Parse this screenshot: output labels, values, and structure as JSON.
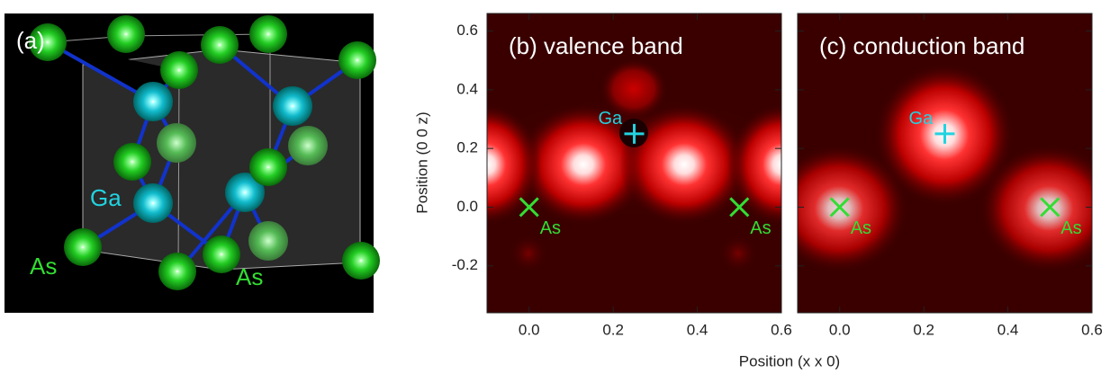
{
  "panel_a": {
    "label": "(a)",
    "atom_labels": [
      "Ga",
      "As",
      "As"
    ]
  },
  "chart_data": [
    {
      "type": "contour",
      "title": "(b) valence band",
      "xlim": [
        -0.1,
        0.6
      ],
      "ylim": [
        -0.36,
        0.66
      ],
      "xticks": [
        {
          "value": 0,
          "label": "0.0"
        },
        0.2,
        0.4,
        0.6
      ],
      "yticks": [
        -0.2,
        {
          "value": 0,
          "label": "0.0"
        },
        0.2,
        0.4,
        0.6
      ],
      "xlabel": "Position (x x 0)",
      "ylabel": "Position (0 0 z)",
      "atoms": {
        "names": [
          "Ga",
          "As",
          "As"
        ],
        "x": [
          0.25,
          0,
          0.5
        ],
        "y": [
          0.25,
          0,
          0
        ],
        "colors": [
          "#22d3e0",
          "#33dd33",
          "#33dd33"
        ]
      }
    },
    {
      "type": "contour",
      "title": "(c) conduction band",
      "xlim": [
        -0.1,
        0.6
      ],
      "ylim": [
        -0.36,
        0.66
      ],
      "xticks": [
        {
          "value": 0,
          "label": "0.0"
        },
        0.2,
        0.4,
        0.6
      ],
      "atoms": {
        "names": [
          "Ga",
          "As",
          "As"
        ],
        "x": [
          0.25,
          0,
          0.5
        ],
        "y": [
          0.25,
          0,
          0
        ],
        "colors": [
          "#22d3e0",
          "#33dd33",
          "#33dd33"
        ]
      }
    }
  ]
}
